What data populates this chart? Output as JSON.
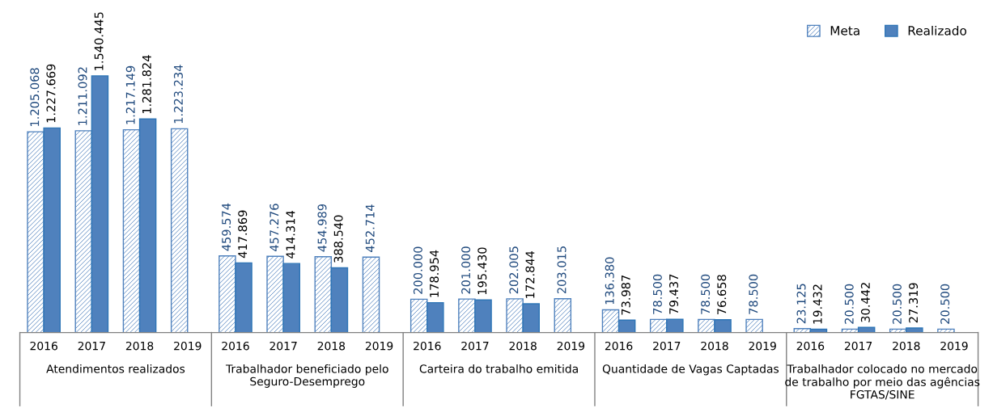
{
  "chart_data": {
    "type": "bar",
    "categories": [
      "2016",
      "2017",
      "2018",
      "2019",
      "2016",
      "2017",
      "2018",
      "2019",
      "2016",
      "2017",
      "2018",
      "2019",
      "2016",
      "2017",
      "2018",
      "2019",
      "2016",
      "2017",
      "2018",
      "2019"
    ],
    "series": [
      {
        "name": "Meta",
        "color": "#4f81bd",
        "values": [
          1205068,
          1211092,
          1217149,
          1223234,
          459574,
          457276,
          454989,
          452714,
          200000,
          201000,
          202005,
          203015,
          136380,
          78500,
          78500,
          78500,
          23125,
          20500,
          20500,
          20500
        ],
        "value_labels": [
          "1.205.068",
          "1.211.092",
          "1.217.149",
          "1.223.234",
          "459.574",
          "457.276",
          "454.989",
          "452.714",
          "200.000",
          "201.000",
          "202.005",
          "203.015",
          "136.380",
          "78.500",
          "78.500",
          "78.500",
          "23.125",
          "20.500",
          "20.500",
          "20.500"
        ]
      },
      {
        "name": "Realizado",
        "color": "#4f81bd",
        "values": [
          1227669,
          1540445,
          1281824,
          null,
          417869,
          414314,
          388540,
          null,
          178954,
          195430,
          172844,
          null,
          73987,
          79437,
          76658,
          null,
          19432,
          30442,
          27319,
          null
        ],
        "value_labels": [
          "1.227.669",
          "1.540.445",
          "1.281.824",
          null,
          "417.869",
          "414.314",
          "388.540",
          null,
          "178.954",
          "195.430",
          "172.844",
          null,
          "73.987",
          "79.437",
          "76.658",
          null,
          "19.432",
          "30.442",
          "27.319",
          null
        ]
      }
    ],
    "annotations": [
      "Atendimentos realizados",
      "Trabalhador beneficiado pelo\nSeguro-Desemprego",
      "Carteira do trabalho emitida",
      "Quantidade de Vagas Captadas",
      "Trabalhador colocado no mercado\nde trabalho por meio das agências\nFGTAS/SINE"
    ],
    "legend": "top right"
  }
}
